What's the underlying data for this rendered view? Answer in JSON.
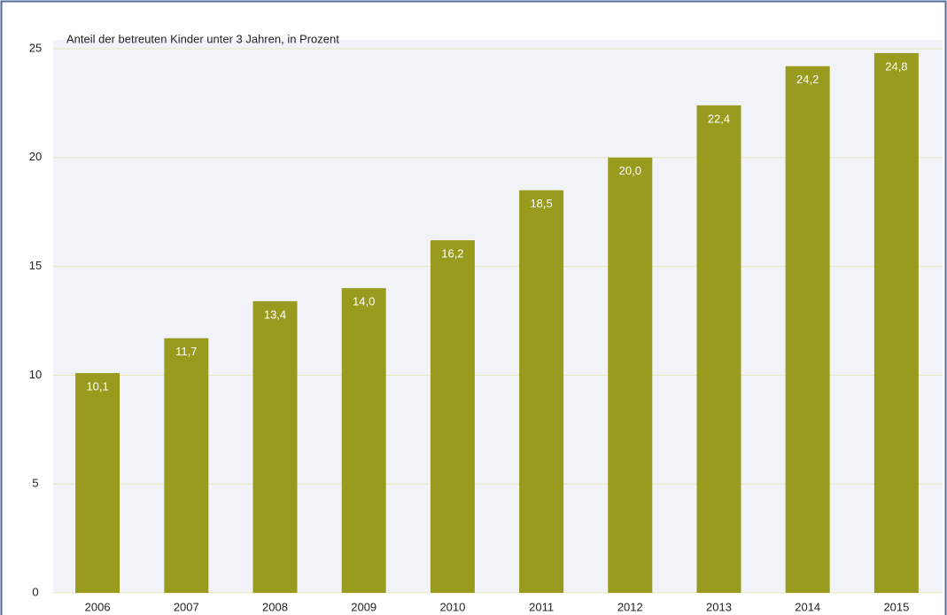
{
  "chart_data": {
    "type": "bar",
    "title": "Anteil der betreuten Kinder unter 3 Jahren, in Prozent",
    "categories": [
      "2006",
      "2007",
      "2008",
      "2009",
      "2010",
      "2011",
      "2012",
      "2013",
      "2014",
      "2015"
    ],
    "values": [
      10.1,
      11.7,
      13.4,
      14.0,
      16.2,
      18.5,
      20.0,
      22.4,
      24.2,
      24.8
    ],
    "value_labels": [
      "10,1",
      "11,7",
      "13,4",
      "14,0",
      "16,2",
      "18,5",
      "20,0",
      "22,4",
      "24,2",
      "24,8"
    ],
    "color": "#999b1f",
    "ylim": [
      0,
      25
    ],
    "yticks": [
      0,
      5,
      10,
      15,
      20,
      25
    ],
    "grid": true
  }
}
